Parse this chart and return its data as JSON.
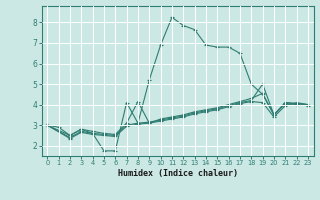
{
  "xlabel": "Humidex (Indice chaleur)",
  "bg_color": "#cce8e4",
  "line_color": "#2e7d72",
  "grid_color": "#ffffff",
  "xlim": [
    -0.5,
    23.5
  ],
  "ylim": [
    1.5,
    8.8
  ],
  "xticks": [
    0,
    1,
    2,
    3,
    4,
    5,
    6,
    7,
    8,
    9,
    10,
    11,
    12,
    13,
    14,
    15,
    16,
    17,
    18,
    19,
    20,
    21,
    22,
    23
  ],
  "yticks": [
    2,
    3,
    4,
    5,
    6,
    7,
    8
  ],
  "lines": [
    {
      "x": [
        0,
        1,
        2,
        3,
        4,
        5,
        6,
        7,
        8,
        9,
        10,
        11,
        12,
        13,
        14,
        15,
        16,
        17,
        18,
        19,
        20,
        21,
        22,
        23
      ],
      "y": [
        3.0,
        2.9,
        2.5,
        2.8,
        2.6,
        1.75,
        1.75,
        4.1,
        3.1,
        5.2,
        6.9,
        8.25,
        7.85,
        7.65,
        6.9,
        6.8,
        6.8,
        6.5,
        5.0,
        4.5,
        3.5,
        4.1,
        4.05,
        4.0
      ]
    },
    {
      "x": [
        0,
        2,
        3,
        4,
        5,
        6,
        7,
        8,
        9,
        10,
        11,
        12,
        13,
        14,
        15,
        16,
        17,
        18,
        19,
        20,
        21,
        22,
        23
      ],
      "y": [
        3.0,
        2.5,
        2.8,
        2.7,
        2.6,
        2.55,
        3.1,
        4.15,
        3.1,
        3.3,
        3.4,
        3.5,
        3.65,
        3.75,
        3.85,
        4.0,
        4.15,
        4.3,
        4.55,
        3.5,
        4.1,
        4.05,
        4.0
      ]
    },
    {
      "x": [
        0,
        2,
        3,
        4,
        5,
        6,
        7,
        8,
        9,
        10,
        11,
        12,
        13,
        14,
        15,
        16,
        17,
        18,
        19,
        20,
        21,
        22,
        23
      ],
      "y": [
        3.0,
        2.4,
        2.7,
        2.6,
        2.55,
        2.5,
        3.0,
        3.1,
        3.15,
        3.25,
        3.35,
        3.45,
        3.6,
        3.7,
        3.8,
        3.95,
        4.1,
        4.2,
        5.0,
        3.5,
        4.05,
        4.0,
        3.95
      ]
    },
    {
      "x": [
        0,
        2,
        3,
        4,
        5,
        6,
        7,
        8,
        9,
        10,
        11,
        12,
        13,
        14,
        15,
        16,
        17,
        18,
        19,
        20,
        21,
        22,
        23
      ],
      "y": [
        3.0,
        2.35,
        2.65,
        2.55,
        2.5,
        2.45,
        2.95,
        3.05,
        3.1,
        3.2,
        3.3,
        3.4,
        3.55,
        3.65,
        3.75,
        3.9,
        4.05,
        4.15,
        4.1,
        3.4,
        3.95,
        4.1,
        4.0
      ]
    }
  ]
}
